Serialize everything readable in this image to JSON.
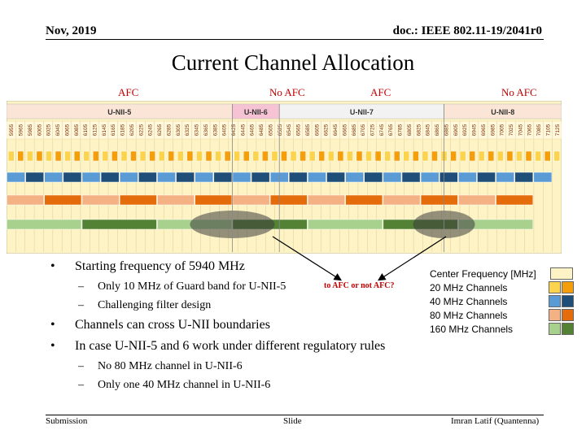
{
  "header": {
    "date": "Nov, 2019",
    "doc": "doc.: IEEE 802.11-19/2041r0"
  },
  "title": "Current Channel Allocation",
  "afc_labels": [
    "AFC",
    "No AFC",
    "AFC",
    "No AFC"
  ],
  "chart_data": {
    "type": "table",
    "bands": [
      {
        "name": "U-NII-5",
        "from": 5945,
        "to": 6425,
        "color": "#fbe5d6"
      },
      {
        "name": "U-NII-6",
        "from": 6425,
        "to": 6525,
        "color": "#f6c3d5"
      },
      {
        "name": "U-NII-7",
        "from": 6525,
        "to": 6875,
        "color": "#f2f2f2"
      },
      {
        "name": "U-NII-8",
        "from": 6875,
        "to": 7125,
        "color": "#fbe5d6"
      }
    ],
    "center_frequencies": [
      5955,
      5965,
      5985,
      6005,
      6025,
      6045,
      6065,
      6085,
      6105,
      6125,
      6145,
      6165,
      6185,
      6205,
      6225,
      6245,
      6265,
      6285,
      6305,
      6325,
      6345,
      6365,
      6385,
      6405,
      6425,
      6445,
      6465,
      6485,
      6505,
      6525,
      6545,
      6565,
      6585,
      6605,
      6625,
      6645,
      6665,
      6685,
      6705,
      6725,
      6745,
      6765,
      6785,
      6805,
      6825,
      6845,
      6865,
      6885,
      6905,
      6925,
      6945,
      6965,
      6985,
      7005,
      7025,
      7045,
      7065,
      7085,
      7105,
      7125
    ],
    "channel_start_mhz": 5945,
    "channel_end_mhz": 7125,
    "channel_widths_mhz": [
      20,
      40,
      80,
      160
    ],
    "cross_boundary_channels": [
      {
        "width": 160,
        "band_from": "U-NII-5",
        "band_to": "U-NII-6"
      },
      {
        "width": 160,
        "band_from": "U-NII-7",
        "band_to": "U-NII-8"
      }
    ]
  },
  "question_box": "to AFC or not AFC?",
  "bullets": [
    {
      "marker": "•",
      "text": "Starting frequency of 5940 MHz",
      "subs": [
        {
          "marker": "–",
          "text": "Only 10 MHz of Guard band for U-NII-5"
        },
        {
          "marker": "–",
          "text": "Challenging filter design"
        }
      ]
    },
    {
      "marker": "•",
      "text": "Channels can cross U-NII boundaries",
      "subs": []
    },
    {
      "marker": "•",
      "text": "In case U-NII-5 and 6 work under different regulatory rules",
      "subs": [
        {
          "marker": "–",
          "text": "No 80 MHz channel in U-NII-6"
        },
        {
          "marker": "–",
          "text": "Only one 40 MHz channel in U-NII-6"
        }
      ]
    }
  ],
  "legend": {
    "items": [
      {
        "label": "Center Frequency [MHz]",
        "colors": [
          "#fdf3c4"
        ]
      },
      {
        "label": "20 MHz Channels",
        "colors": [
          "#fcd34d",
          "#f59e0b"
        ]
      },
      {
        "label": "40 MHz Channels",
        "colors": [
          "#5b9bd5",
          "#1f4e79"
        ]
      },
      {
        "label": "80 MHz Channels",
        "colors": [
          "#f4b183",
          "#e46c0a"
        ]
      },
      {
        "label": "160 MHz Channels",
        "colors": [
          "#a9d18e",
          "#548235"
        ]
      }
    ]
  },
  "footer": {
    "left": "Submission",
    "center": "Slide",
    "right": "Imran Latif (Quantenna)"
  }
}
